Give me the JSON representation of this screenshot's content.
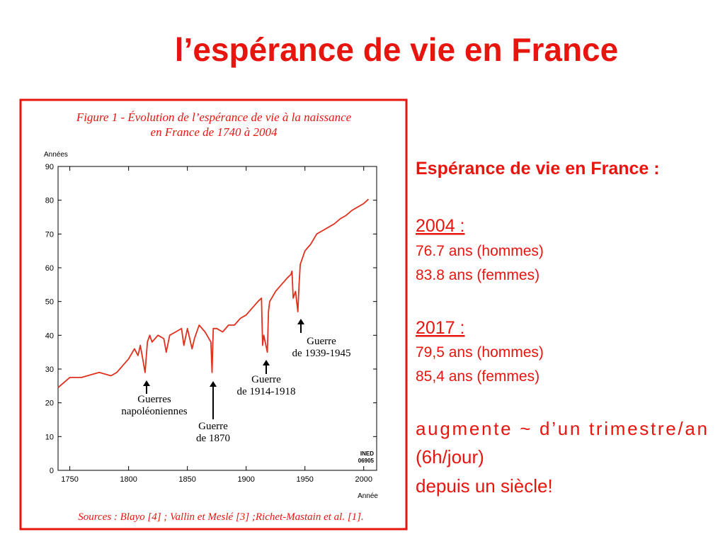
{
  "slide_title": "l’espérance de vie en France",
  "side_panel": {
    "heading": "Espérance de vie en France :",
    "blocks": [
      {
        "year": "2004 :",
        "lines": [
          "76.7 ans (hommes)",
          "83.8 ans (femmes)"
        ]
      },
      {
        "year": "2017 :",
        "lines": [
          "79,5 ans (hommes)",
          "85,4 ans (femmes)"
        ]
      }
    ],
    "conclusion": [
      "augmente ~ d’un trimestre/an",
      "(6h/jour)",
      "depuis un siècle!"
    ]
  },
  "chart_data": {
    "type": "line",
    "title": [
      "Figure 1 - Évolution de l’espérance de vie à la naissance",
      "en France de 1740 à 2004"
    ],
    "y_label": "Années",
    "x_label": "Année",
    "logo": [
      "INED",
      "06905"
    ],
    "source": "Sources : Blayo [4] ; Vallin et Meslé [3] ;Richet-Mastain et al. [1].",
    "color": "#e0301e",
    "x": [
      1740,
      1745,
      1750,
      1755,
      1760,
      1765,
      1770,
      1775,
      1780,
      1785,
      1790,
      1795,
      1800,
      1805,
      1808,
      1810,
      1812,
      1814,
      1816,
      1818,
      1820,
      1825,
      1830,
      1832,
      1835,
      1840,
      1845,
      1847,
      1850,
      1854,
      1856,
      1860,
      1865,
      1870,
      1871,
      1872,
      1875,
      1880,
      1885,
      1890,
      1895,
      1900,
      1905,
      1910,
      1913,
      1914,
      1915,
      1918,
      1919,
      1920,
      1925,
      1930,
      1935,
      1938,
      1939,
      1940,
      1942,
      1944,
      1945,
      1946,
      1950,
      1955,
      1960,
      1965,
      1970,
      1975,
      1980,
      1985,
      1990,
      1995,
      2000,
      2004
    ],
    "values": [
      24.5,
      26,
      27.5,
      27.5,
      27.5,
      28,
      28.5,
      29,
      28.5,
      28,
      29,
      31,
      33,
      36,
      34,
      37,
      33,
      29,
      38,
      40,
      38,
      40,
      39,
      35,
      40,
      41,
      42,
      37,
      42,
      36,
      39,
      43,
      41,
      38,
      29,
      42,
      42,
      41,
      43,
      43,
      45,
      46,
      48,
      50,
      51,
      37,
      40,
      35,
      47,
      50,
      53,
      55,
      57,
      58,
      59,
      51,
      53,
      47,
      55,
      61,
      65,
      67,
      70,
      71,
      72,
      73,
      74.5,
      75.5,
      77,
      78,
      79,
      80.3
    ],
    "xlim": [
      1740,
      2011
    ],
    "ylim": [
      0,
      90
    ],
    "xticks": [
      1750,
      1800,
      1850,
      1900,
      1950,
      2000
    ],
    "yticks": [
      0,
      10,
      20,
      30,
      40,
      50,
      60,
      70,
      80,
      90
    ],
    "annotations": [
      {
        "text": [
          "Guerres",
          "napoléoniennes"
        ]
      },
      {
        "text": [
          "Guerre",
          "de 1870"
        ]
      },
      {
        "text": [
          "Guerre",
          "de 1914-1918"
        ]
      },
      {
        "text": [
          "Guerre",
          "de 1939-1945"
        ]
      }
    ]
  }
}
